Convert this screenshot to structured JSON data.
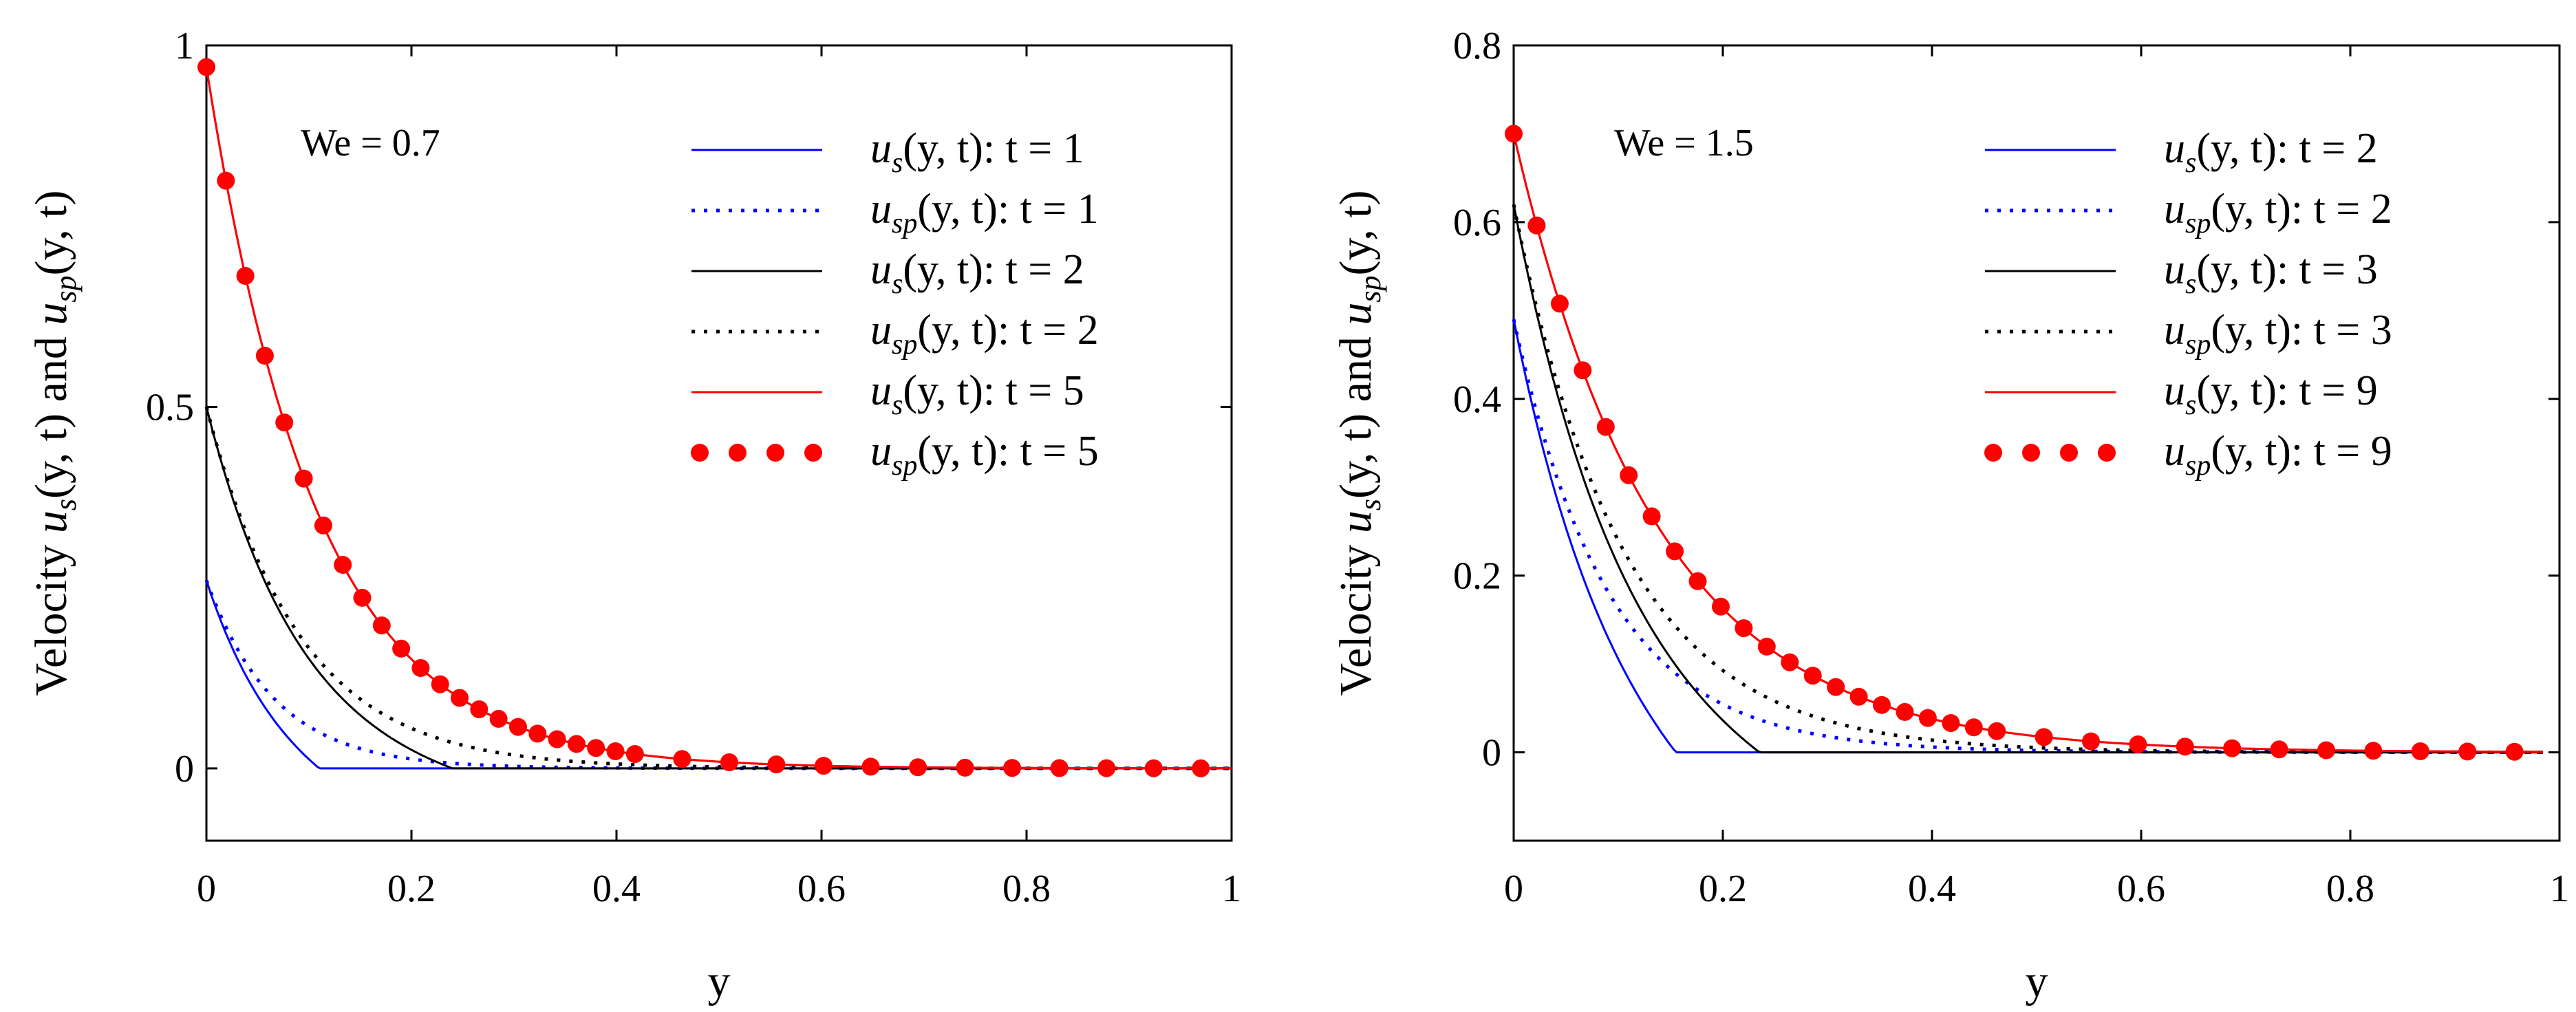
{
  "chart_data": [
    {
      "type": "line",
      "title": "",
      "xlabel": "y",
      "ylabel": {
        "prefix": "Velocity ",
        "f1": "u",
        "s1": "s",
        "mid": "(y, t) and ",
        "f2": "u",
        "s2": "sp",
        "suffix": "(y, t)"
      },
      "xlim": [
        0,
        1
      ],
      "ylim": [
        -0.1,
        1
      ],
      "xticks": [
        "0",
        "0.2",
        "0.4",
        "0.6",
        "0.8",
        "1"
      ],
      "xtick_values": [
        0,
        0.2,
        0.4,
        0.6,
        0.8,
        1
      ],
      "yticks": [
        "0",
        "0.5",
        "1"
      ],
      "ytick_values": [
        0,
        0.5,
        1
      ],
      "annotation": "We = 0.7",
      "legend_position": "top-right",
      "series": [
        {
          "name": "u_s(y, t): t = 1",
          "sym": "u",
          "sub": "s",
          "rest": "(y, t): t = 1",
          "style": "solid",
          "color": "#0000ff",
          "y0": 0.26,
          "k": 15,
          "cutoff": 0.11,
          "x_end": 1
        },
        {
          "name": "u_sp(y, t): t = 1",
          "sym": "u",
          "sub": "sp",
          "rest": "(y, t): t = 1",
          "style": "dotted",
          "color": "#0000ff",
          "y0": 0.26,
          "k": 15,
          "cutoff": null,
          "x_end": 1
        },
        {
          "name": "u_s(y, t): t = 2",
          "sym": "u",
          "sub": "s",
          "rest": "(y, t): t = 2",
          "style": "solid",
          "color": "#000000",
          "y0": 0.5,
          "k": 11,
          "cutoff": 0.24,
          "x_end": 1
        },
        {
          "name": "u_sp(y, t): t = 2",
          "sym": "u",
          "sub": "sp",
          "rest": "(y, t): t = 2",
          "style": "dotted",
          "color": "#000000",
          "y0": 0.5,
          "k": 11,
          "cutoff": null,
          "x_end": 1
        },
        {
          "name": "u_s(y, t): t = 5",
          "sym": "u",
          "sub": "s",
          "rest": "(y, t): t = 5",
          "style": "solid",
          "color": "#ff0000",
          "y0": 0.97,
          "k": 9.3,
          "cutoff": null,
          "x_end": 1
        },
        {
          "name": "u_sp(y, t): t = 5",
          "sym": "u",
          "sub": "sp",
          "rest": "(y, t): t = 5",
          "style": "markers",
          "color": "#ff0000",
          "y0": 0.97,
          "k": 9.3,
          "cutoff": null,
          "x_end": 1,
          "marker_step": 0.019,
          "marker_switch": 0.4,
          "marker_step_far": 0.046
        }
      ]
    },
    {
      "type": "line",
      "title": "",
      "xlabel": "y",
      "ylabel": {
        "prefix": "Velocity ",
        "f1": "u",
        "s1": "s",
        "mid": "(y, t) and ",
        "f2": "u",
        "s2": "sp",
        "suffix": "(y, t)"
      },
      "xlim": [
        0,
        1
      ],
      "ylim": [
        -0.1,
        0.8
      ],
      "xticks": [
        "0",
        "0.2",
        "0.4",
        "0.6",
        "0.8",
        "1"
      ],
      "xtick_values": [
        0,
        0.2,
        0.4,
        0.6,
        0.8,
        1
      ],
      "yticks": [
        "0",
        "0.2",
        "0.4",
        "0.6",
        "0.8"
      ],
      "ytick_values": [
        0,
        0.2,
        0.4,
        0.6,
        0.8
      ],
      "annotation": "We = 1.5",
      "legend_position": "top-right",
      "series": [
        {
          "name": "u_s(y, t): t = 2",
          "sym": "u",
          "sub": "s",
          "rest": "(y, t): t = 2",
          "style": "solid",
          "color": "#0000ff",
          "y0": 0.49,
          "k": 11,
          "cutoff": 0.155,
          "x_end": 0.985
        },
        {
          "name": "u_sp(y, t): t = 2",
          "sym": "u",
          "sub": "sp",
          "rest": "(y, t): t = 2",
          "style": "dotted",
          "color": "#0000ff",
          "y0": 0.49,
          "k": 11,
          "cutoff": null,
          "x_end": 0.985
        },
        {
          "name": "u_s(y, t): t = 3",
          "sym": "u",
          "sub": "s",
          "rest": "(y, t): t = 3",
          "style": "solid",
          "color": "#000000",
          "y0": 0.62,
          "k": 9.5,
          "cutoff": 0.235,
          "x_end": 0.985
        },
        {
          "name": "u_sp(y, t): t = 3",
          "sym": "u",
          "sub": "sp",
          "rest": "(y, t): t = 3",
          "style": "dotted",
          "color": "#000000",
          "y0": 0.62,
          "k": 9.5,
          "cutoff": null,
          "x_end": 0.985
        },
        {
          "name": "u_s(y, t): t = 9",
          "sym": "u",
          "sub": "s",
          "rest": "(y, t): t = 9",
          "style": "solid",
          "color": "#ff0000",
          "y0": 0.7,
          "k": 7.3,
          "cutoff": null,
          "x_end": 0.985
        },
        {
          "name": "u_sp(y, t): t = 9",
          "sym": "u",
          "sub": "sp",
          "rest": "(y, t): t = 9",
          "style": "markers",
          "color": "#ff0000",
          "y0": 0.7,
          "k": 7.3,
          "cutoff": null,
          "x_end": 0.985,
          "marker_step": 0.022,
          "marker_switch": 0.45,
          "marker_step_far": 0.045
        }
      ]
    }
  ]
}
